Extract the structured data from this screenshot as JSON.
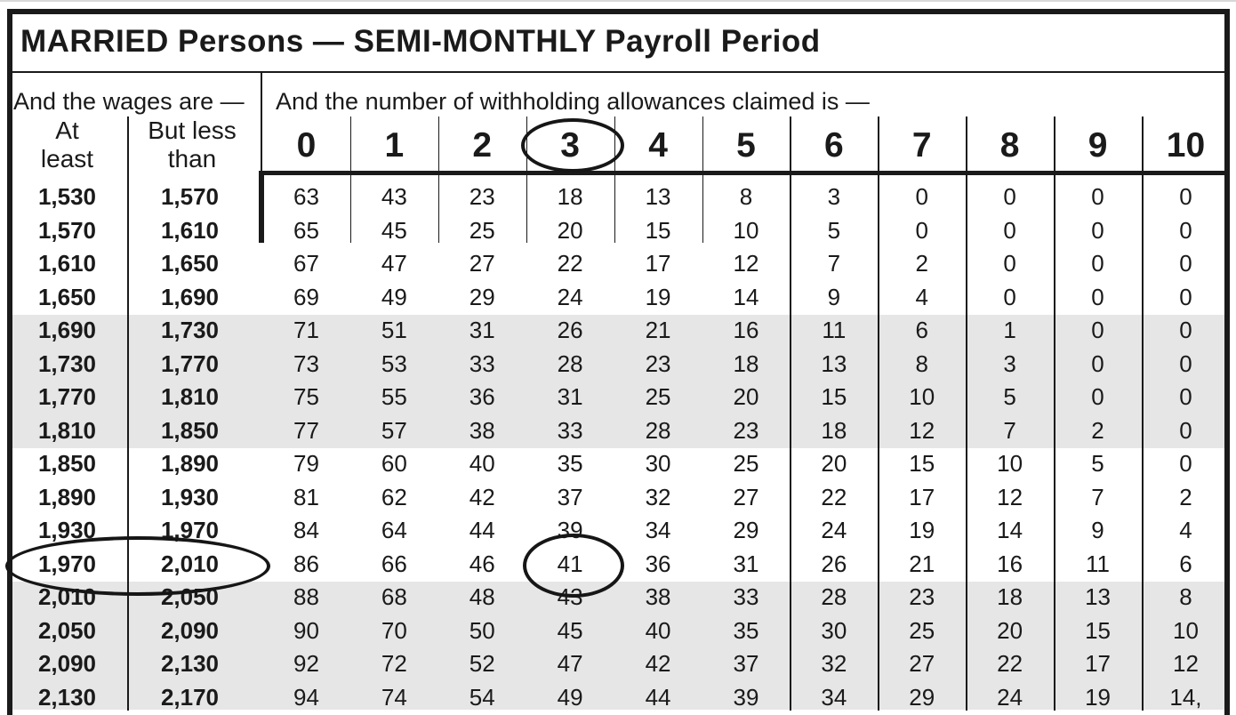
{
  "title": "MARRIED Persons — SEMI-MONTHLY Payroll Period",
  "header": {
    "wages_label": "And the wages are —",
    "allowances_label": "And the number of withholding allowances claimed is —",
    "at_least_lines": [
      "At",
      "least"
    ],
    "but_less_lines": [
      "But less",
      "than"
    ]
  },
  "annotations": {
    "circled_allowance_header": "3",
    "circled_wage_row": "1,970 – 2,010",
    "circled_value": "41"
  },
  "colors": {
    "text": "#1a1a1a",
    "shaded_row_band": "#e6e6e6",
    "border": "#1a1a1a"
  },
  "table": {
    "allowance_headers": [
      "0",
      "1",
      "2",
      "3",
      "4",
      "5",
      "6",
      "7",
      "8",
      "9",
      "10"
    ],
    "rows": [
      {
        "at_least": "1,530",
        "but_less": "1,570",
        "shaded": false,
        "values": [
          "63",
          "43",
          "23",
          "18",
          "13",
          "8",
          "3",
          "0",
          "0",
          "0",
          "0"
        ]
      },
      {
        "at_least": "1,570",
        "but_less": "1,610",
        "shaded": false,
        "values": [
          "65",
          "45",
          "25",
          "20",
          "15",
          "10",
          "5",
          "0",
          "0",
          "0",
          "0"
        ]
      },
      {
        "at_least": "1,610",
        "but_less": "1,650",
        "shaded": false,
        "values": [
          "67",
          "47",
          "27",
          "22",
          "17",
          "12",
          "7",
          "2",
          "0",
          "0",
          "0"
        ]
      },
      {
        "at_least": "1,650",
        "but_less": "1,690",
        "shaded": false,
        "values": [
          "69",
          "49",
          "29",
          "24",
          "19",
          "14",
          "9",
          "4",
          "0",
          "0",
          "0"
        ]
      },
      {
        "at_least": "1,690",
        "but_less": "1,730",
        "shaded": true,
        "values": [
          "71",
          "51",
          "31",
          "26",
          "21",
          "16",
          "11",
          "6",
          "1",
          "0",
          "0"
        ]
      },
      {
        "at_least": "1,730",
        "but_less": "1,770",
        "shaded": true,
        "values": [
          "73",
          "53",
          "33",
          "28",
          "23",
          "18",
          "13",
          "8",
          "3",
          "0",
          "0"
        ]
      },
      {
        "at_least": "1,770",
        "but_less": "1,810",
        "shaded": true,
        "values": [
          "75",
          "55",
          "36",
          "31",
          "25",
          "20",
          "15",
          "10",
          "5",
          "0",
          "0"
        ]
      },
      {
        "at_least": "1,810",
        "but_less": "1,850",
        "shaded": true,
        "values": [
          "77",
          "57",
          "38",
          "33",
          "28",
          "23",
          "18",
          "12",
          "7",
          "2",
          "0"
        ]
      },
      {
        "at_least": "1,850",
        "but_less": "1,890",
        "shaded": false,
        "values": [
          "79",
          "60",
          "40",
          "35",
          "30",
          "25",
          "20",
          "15",
          "10",
          "5",
          "0"
        ]
      },
      {
        "at_least": "1,890",
        "but_less": "1,930",
        "shaded": false,
        "values": [
          "81",
          "62",
          "42",
          "37",
          "32",
          "27",
          "22",
          "17",
          "12",
          "7",
          "2"
        ]
      },
      {
        "at_least": "1,930",
        "but_less": "1,970",
        "shaded": false,
        "values": [
          "84",
          "64",
          "44",
          "39",
          "34",
          "29",
          "24",
          "19",
          "14",
          "9",
          "4"
        ]
      },
      {
        "at_least": "1,970",
        "but_less": "2,010",
        "shaded": false,
        "circled_row": true,
        "circled_value_col": 3,
        "values": [
          "86",
          "66",
          "46",
          "41",
          "36",
          "31",
          "26",
          "21",
          "16",
          "11",
          "6"
        ]
      },
      {
        "at_least": "2,010",
        "but_less": "2,050",
        "shaded": true,
        "values": [
          "88",
          "68",
          "48",
          "43",
          "38",
          "33",
          "28",
          "23",
          "18",
          "13",
          "8"
        ]
      },
      {
        "at_least": "2,050",
        "but_less": "2,090",
        "shaded": true,
        "values": [
          "90",
          "70",
          "50",
          "45",
          "40",
          "35",
          "30",
          "25",
          "20",
          "15",
          "10"
        ]
      },
      {
        "at_least": "2,090",
        "but_less": "2,130",
        "shaded": true,
        "values": [
          "92",
          "72",
          "52",
          "47",
          "42",
          "37",
          "32",
          "27",
          "22",
          "17",
          "12"
        ]
      },
      {
        "at_least": "2,130",
        "but_less": "2,170",
        "shaded": true,
        "values": [
          "94",
          "74",
          "54",
          "49",
          "44",
          "39",
          "34",
          "29",
          "24",
          "19",
          "14,"
        ]
      }
    ]
  }
}
